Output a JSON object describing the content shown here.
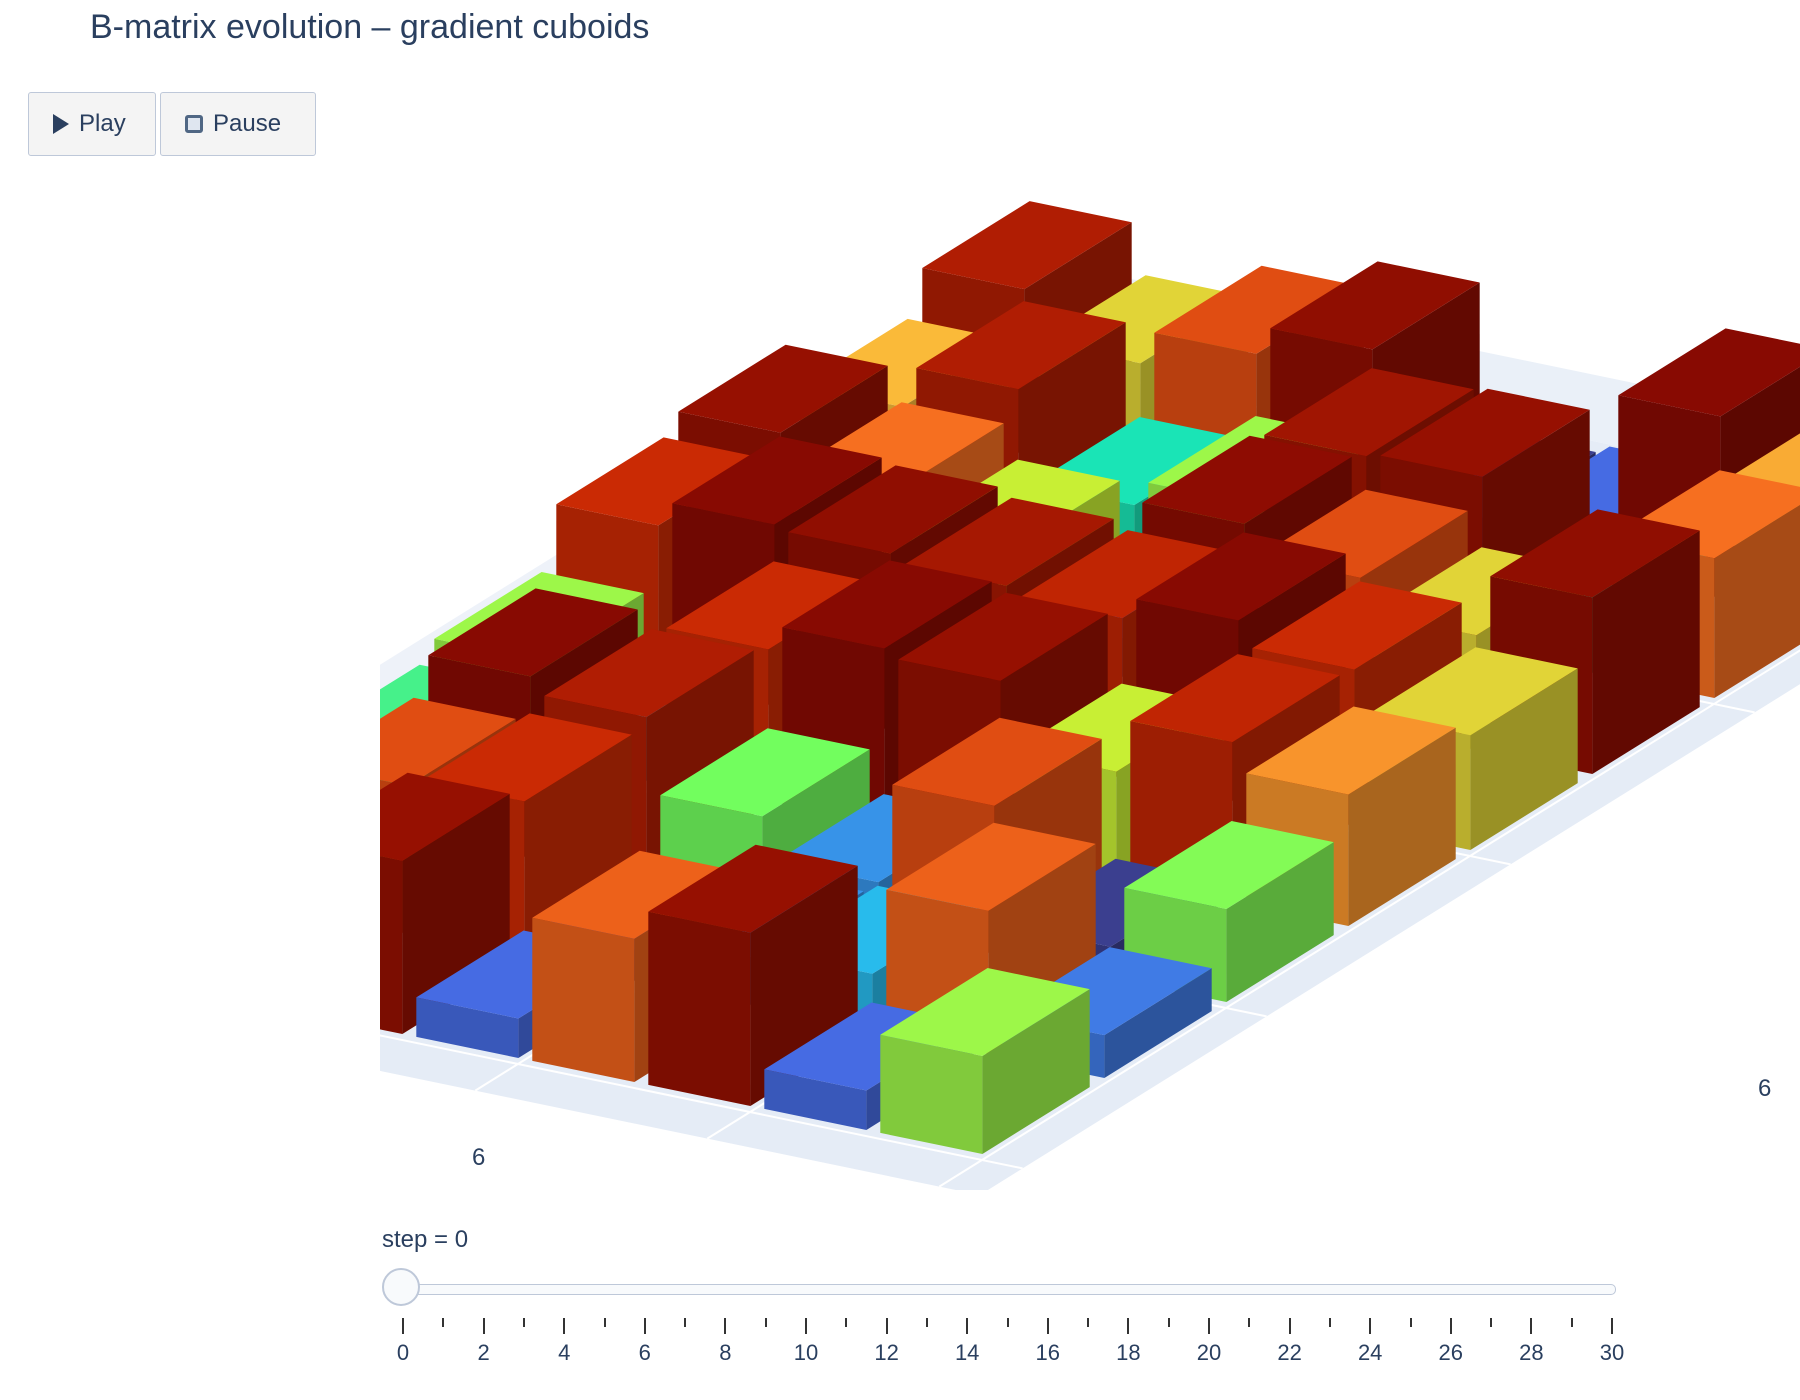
{
  "title": "B-matrix evolution – gradient cuboids",
  "controls": {
    "play_label": "Play",
    "pause_label": "Pause"
  },
  "slider": {
    "prefix": "step = ",
    "current": 0,
    "min": 0,
    "max": 30,
    "step": 1,
    "labels": [
      "0",
      "2",
      "4",
      "6",
      "8",
      "10",
      "12",
      "14",
      "16",
      "18",
      "20",
      "22",
      "24",
      "26",
      "28",
      "30"
    ]
  },
  "chart_data": {
    "type": "3d-bar",
    "grid_size": 8,
    "x_tick_label": "6",
    "y_tick_label": "6",
    "colorscale": "Turbo",
    "value_range": [
      0,
      1
    ],
    "values": [
      [
        0.85,
        0.55,
        0.75,
        0.92,
        0.05,
        0.1,
        0.95,
        0.62
      ],
      [
        0.6,
        0.85,
        0.3,
        0.45,
        0.88,
        0.9,
        0.3,
        0.7
      ],
      [
        0.9,
        0.7,
        0.5,
        0.1,
        0.93,
        0.75,
        0.55,
        0.92
      ],
      [
        0.8,
        0.95,
        0.92,
        0.87,
        0.82,
        0.95,
        0.8,
        0.55
      ],
      [
        0.45,
        0.2,
        0.8,
        0.95,
        0.9,
        0.5,
        0.82,
        0.65
      ],
      [
        0.35,
        0.95,
        0.85,
        0.4,
        0.15,
        0.75,
        0.05,
        0.42
      ],
      [
        0.1,
        0.75,
        0.8,
        0.05,
        0.15,
        0.2,
        0.72,
        0.12
      ],
      [
        0.6,
        0.68,
        0.9,
        0.1,
        0.72,
        0.9,
        0.1,
        0.45
      ]
    ]
  }
}
